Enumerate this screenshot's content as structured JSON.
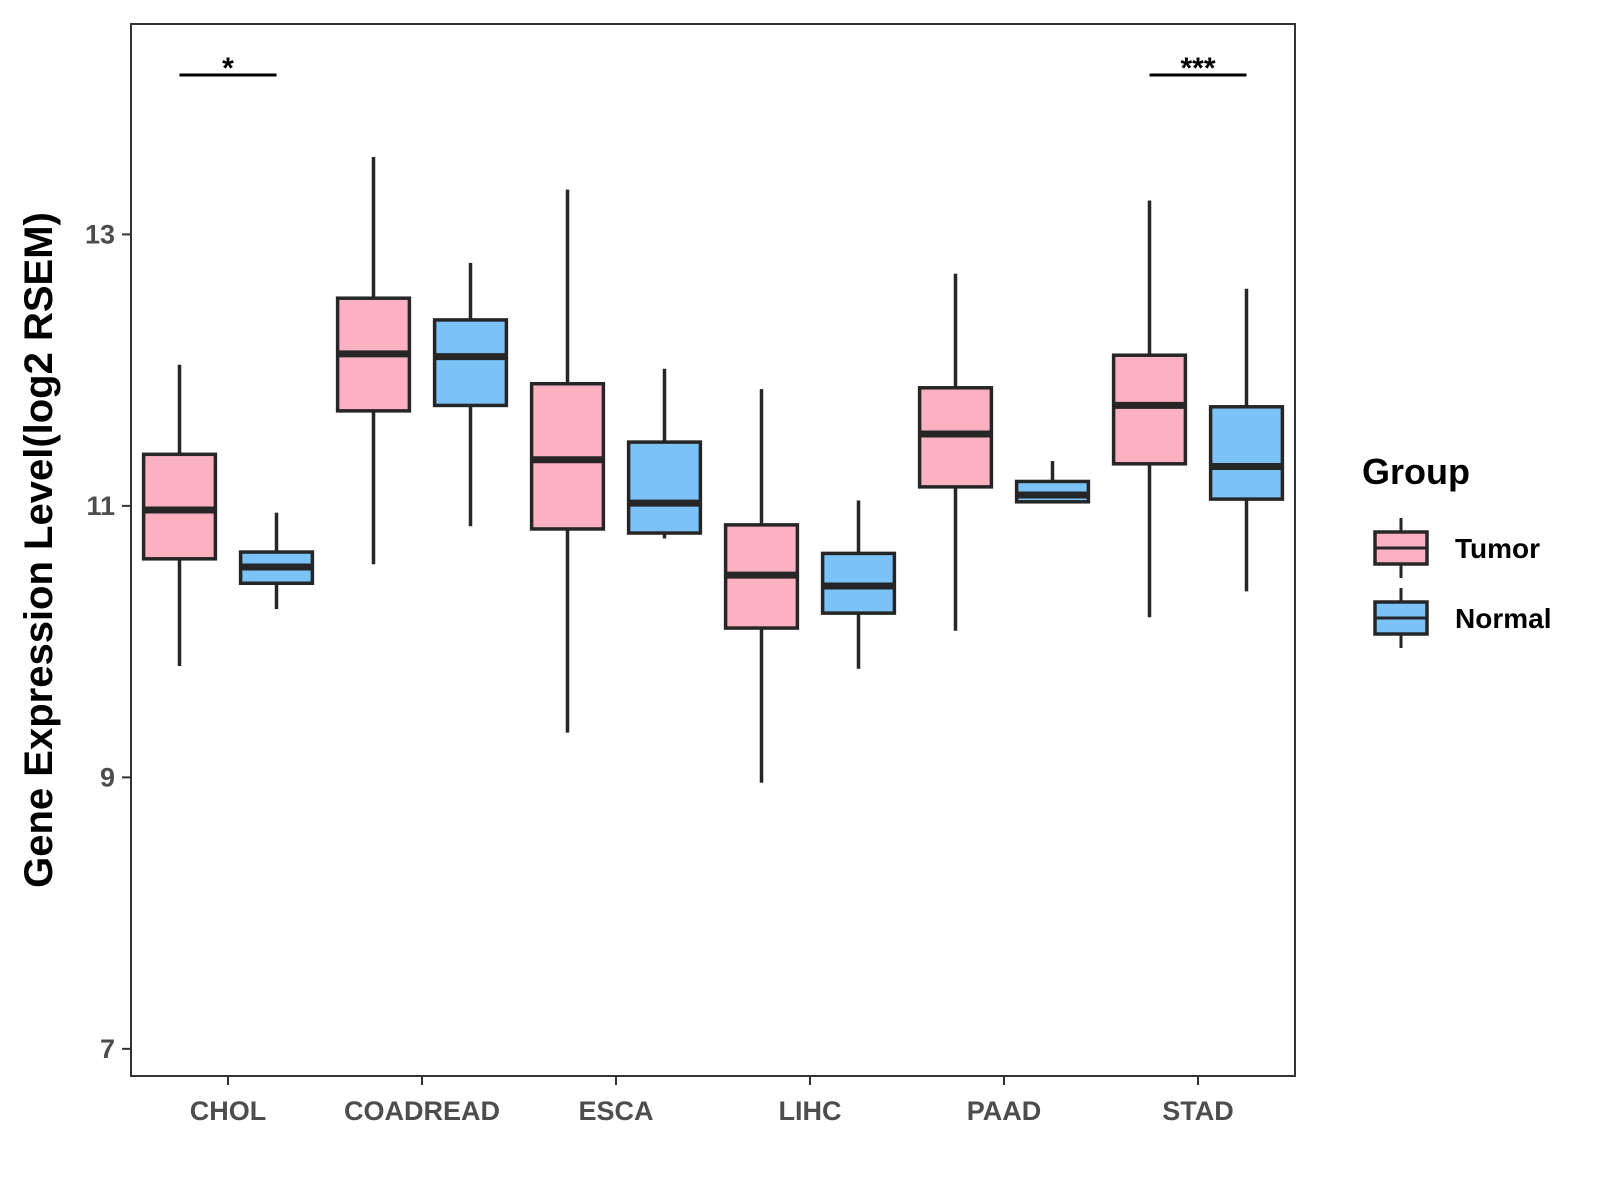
{
  "chart_data": {
    "type": "boxplot",
    "title": "",
    "xlabel": "",
    "ylabel": "Gene Expression Level(log2 RSEM)",
    "ylim": [
      6.8,
      14.55
    ],
    "yticks": [
      7,
      9,
      11,
      13
    ],
    "grid": false,
    "categories": [
      "CHOL",
      "COADREAD",
      "ESCA",
      "LIHC",
      "PAAD",
      "STAD"
    ],
    "legend": {
      "title": "Group",
      "position": "right"
    },
    "series": [
      {
        "name": "Tumor",
        "color": "#fcb1c3",
        "boxes": [
          {
            "min": 9.82,
            "q1": 10.61,
            "median": 10.97,
            "q3": 11.38,
            "max": 12.04
          },
          {
            "min": 10.57,
            "q1": 11.7,
            "median": 12.12,
            "q3": 12.53,
            "max": 13.57
          },
          {
            "min": 9.33,
            "q1": 10.83,
            "median": 11.34,
            "q3": 11.9,
            "max": 13.33
          },
          {
            "min": 8.96,
            "q1": 10.1,
            "median": 10.49,
            "q3": 10.86,
            "max": 11.86
          },
          {
            "min": 10.08,
            "q1": 11.14,
            "median": 11.53,
            "q3": 11.87,
            "max": 12.71
          },
          {
            "min": 10.18,
            "q1": 11.31,
            "median": 11.74,
            "q3": 12.11,
            "max": 13.25
          }
        ]
      },
      {
        "name": "Normal",
        "color": "#7bc3f7",
        "boxes": [
          {
            "min": 10.24,
            "q1": 10.43,
            "median": 10.55,
            "q3": 10.66,
            "max": 10.95
          },
          {
            "min": 10.85,
            "q1": 11.74,
            "median": 12.1,
            "q3": 12.37,
            "max": 12.79
          },
          {
            "min": 10.76,
            "q1": 10.8,
            "median": 11.02,
            "q3": 11.47,
            "max": 12.01
          },
          {
            "min": 9.8,
            "q1": 10.21,
            "median": 10.41,
            "q3": 10.65,
            "max": 11.04
          },
          {
            "min": 11.03,
            "q1": 11.03,
            "median": 11.08,
            "q3": 11.18,
            "max": 11.33
          },
          {
            "min": 10.37,
            "q1": 11.05,
            "median": 11.29,
            "q3": 11.73,
            "max": 12.6
          }
        ]
      }
    ],
    "annotations": [
      {
        "category": "CHOL",
        "text": "*"
      },
      {
        "category": "STAD",
        "text": "***"
      }
    ]
  }
}
